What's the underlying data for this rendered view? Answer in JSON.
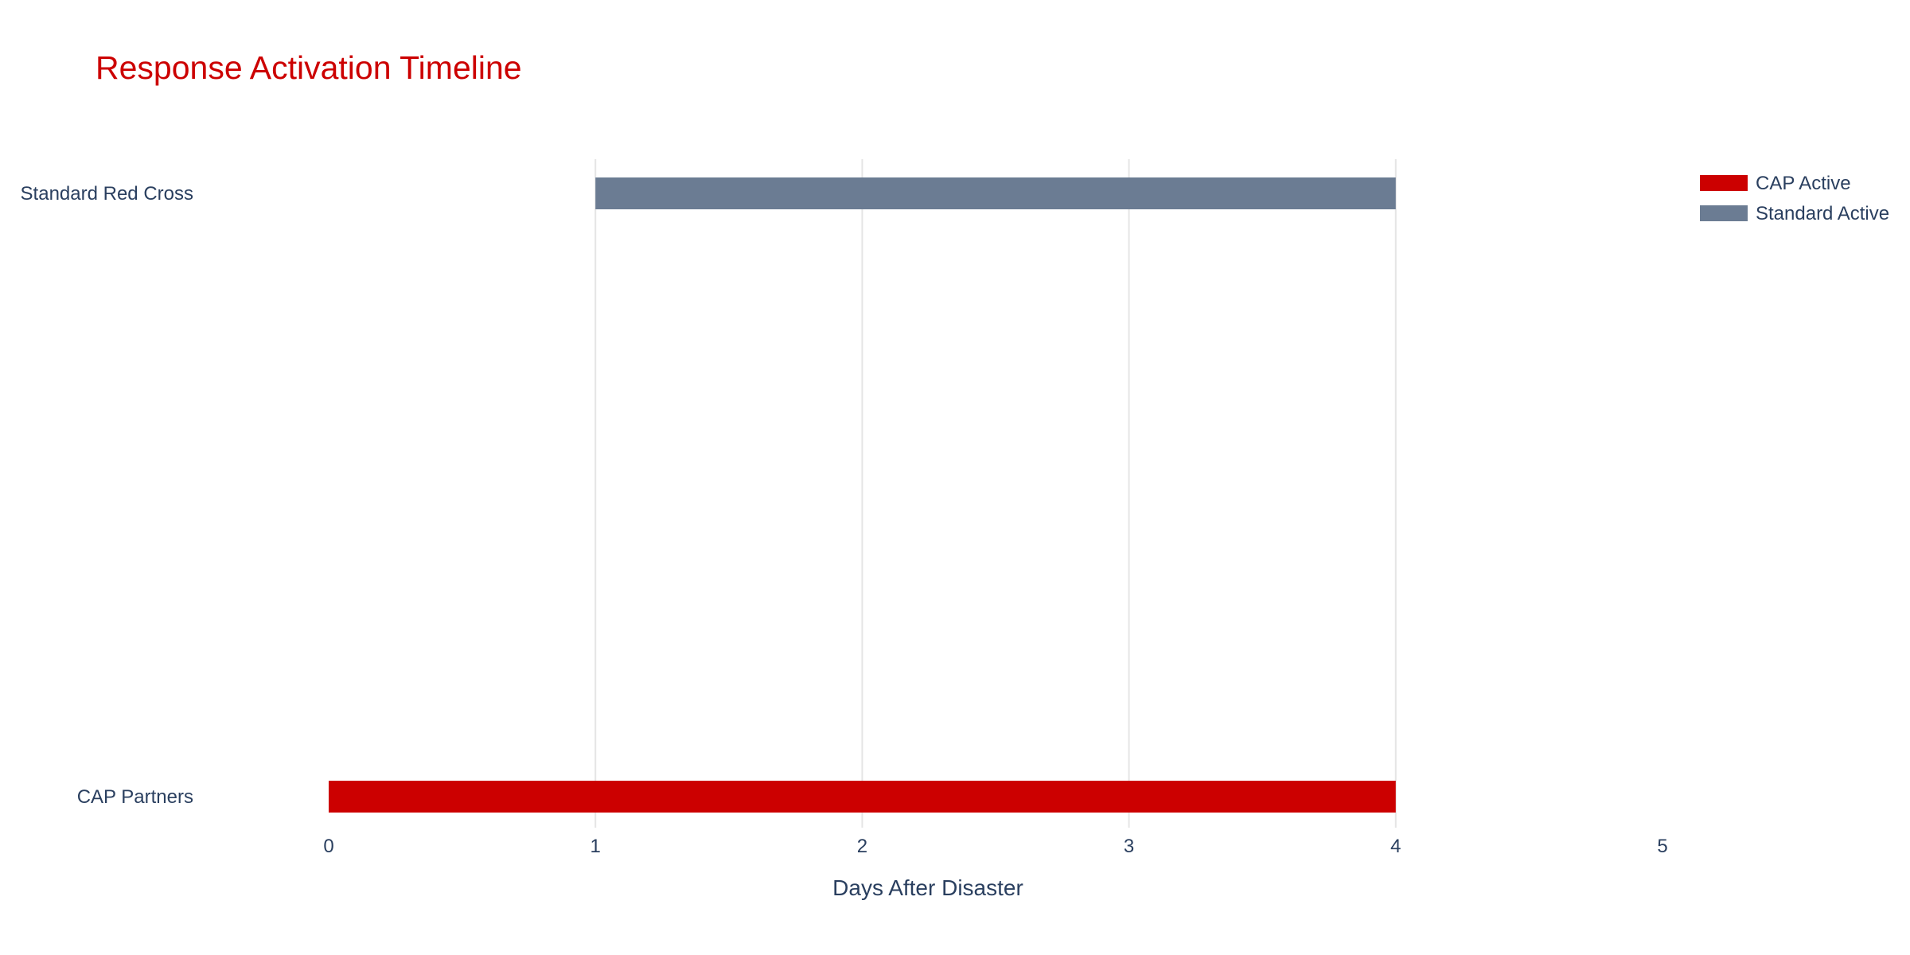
{
  "chart_data": {
    "type": "bar",
    "orientation": "horizontal",
    "title": "Response Activation Timeline",
    "xlabel": "Days After Disaster",
    "ylabel": "",
    "xlim": [
      0,
      5
    ],
    "x_ticks": [
      0,
      1,
      2,
      3,
      4,
      5
    ],
    "categories": [
      "CAP Partners",
      "Standard Red Cross"
    ],
    "series": [
      {
        "name": "CAP Active",
        "category": "CAP Partners",
        "start": 0,
        "end": 4,
        "color": "#cc0000"
      },
      {
        "name": "Standard Active",
        "category": "Standard Red Cross",
        "start": 1,
        "end": 4,
        "color": "#6b7c93"
      }
    ],
    "grid": "vertical",
    "legend_position": "top-right"
  }
}
